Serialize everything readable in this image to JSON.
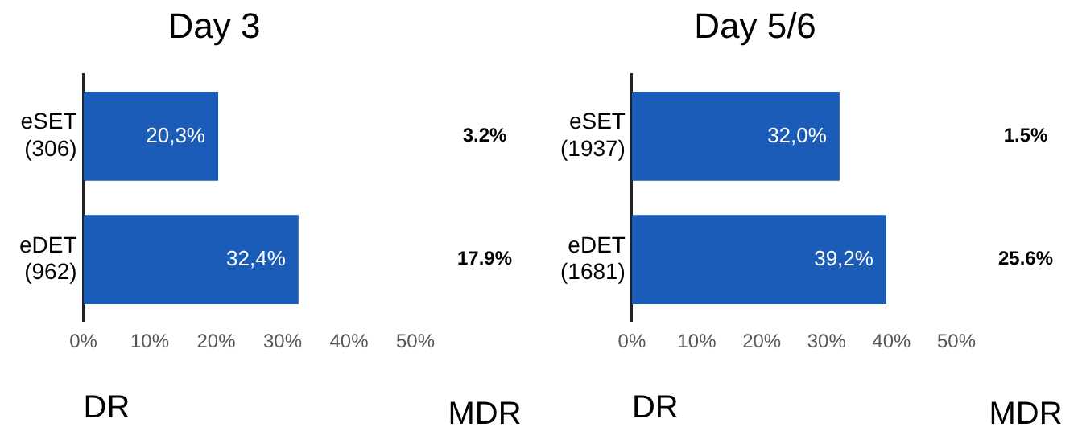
{
  "chart_data": [
    {
      "type": "bar",
      "orientation": "horizontal",
      "title": "Day 3",
      "xlabel": "DR",
      "categories": [
        "eSET\n(306)",
        "eDET\n(962)"
      ],
      "values": [
        20.3,
        32.4
      ],
      "value_labels": [
        "20,3%",
        "32,4%"
      ],
      "color": "#1a5cb8",
      "xlim": [
        0,
        50
      ],
      "xticks": [
        {
          "value": 0,
          "label": "0%"
        },
        {
          "value": 10,
          "label": "10%"
        },
        {
          "value": 20,
          "label": "20%"
        },
        {
          "value": 30,
          "label": "30%"
        },
        {
          "value": 40,
          "label": "40%"
        },
        {
          "value": 50,
          "label": "50%"
        }
      ],
      "grid": false,
      "legend": false,
      "annotations": [
        "3.2%",
        "17.9%",
        "MDR"
      ]
    },
    {
      "type": "bar",
      "orientation": "horizontal",
      "title": "Day 5/6",
      "xlabel": "DR",
      "categories": [
        "eSET\n(1937)",
        "eDET\n(1681)"
      ],
      "values": [
        32.0,
        39.2
      ],
      "value_labels": [
        "32,0%",
        "39,2%"
      ],
      "color": "#1a5cb8",
      "xlim": [
        0,
        50
      ],
      "xticks": [
        {
          "value": 0,
          "label": "0%"
        },
        {
          "value": 10,
          "label": "10%"
        },
        {
          "value": 20,
          "label": "20%"
        },
        {
          "value": 30,
          "label": "30%"
        },
        {
          "value": 40,
          "label": "40%"
        },
        {
          "value": 50,
          "label": "50%"
        }
      ],
      "grid": false,
      "legend": false,
      "annotations": [
        "1.5%",
        "25.6%",
        "MDR"
      ]
    }
  ]
}
